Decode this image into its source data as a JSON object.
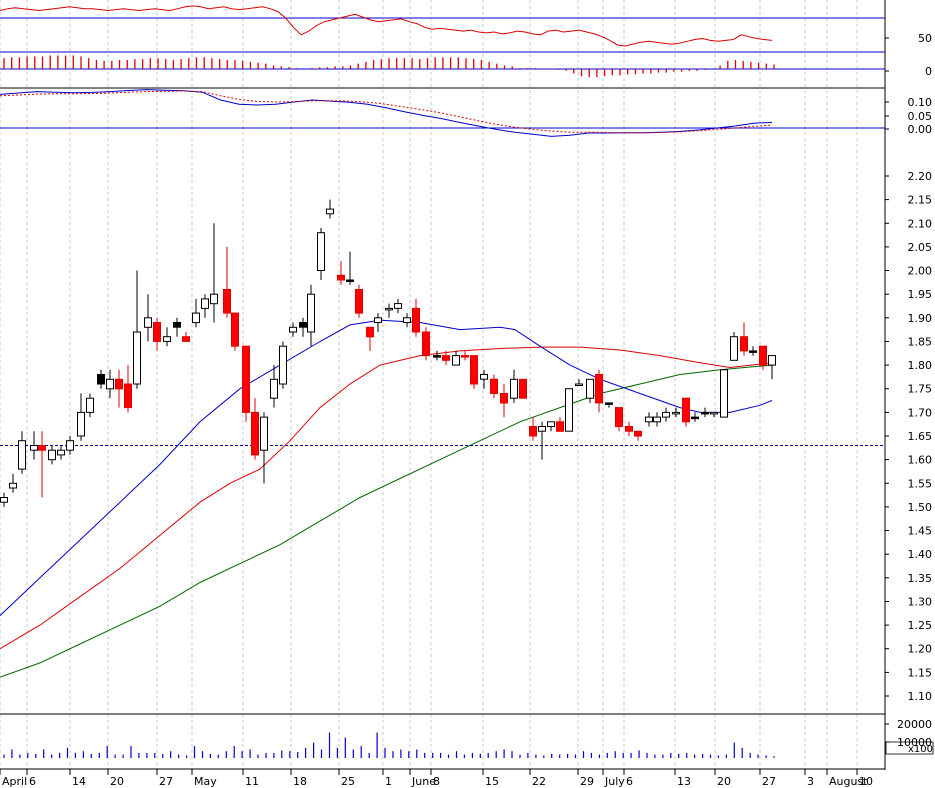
{
  "chart_data": {
    "type": "candlestick",
    "price_axis": {
      "ylim": [
        1.05,
        2.25
      ],
      "ticks": [
        "2.20",
        "2.15",
        "2.10",
        "2.05",
        "2.00",
        "1.95",
        "1.90",
        "1.85",
        "1.80",
        "1.75",
        "1.70",
        "1.65",
        "1.60",
        "1.55",
        "1.50",
        "1.45",
        "1.40",
        "1.35",
        "1.30",
        "1.25",
        "1.20",
        "1.15",
        "1.10"
      ],
      "reference_level": 1.63
    },
    "x_axis": {
      "labels": [
        "April",
        "6",
        "14",
        "20",
        "27",
        "May",
        "11",
        "18",
        "25",
        "1",
        "June",
        "8",
        "15",
        "22",
        "29",
        "July",
        "6",
        "13",
        "20",
        "27",
        "3",
        "August",
        "10"
      ],
      "month_labels": [
        "April",
        "May",
        "June",
        "July",
        "August"
      ]
    },
    "rsi_panel": {
      "ticks": [
        "50",
        "0"
      ],
      "levels": [
        85,
        20
      ],
      "series": [
        78,
        80,
        81,
        80,
        79,
        78,
        79,
        80,
        81,
        82,
        81,
        80,
        80,
        79,
        78,
        79,
        80,
        79,
        78,
        79,
        80,
        79,
        78,
        80,
        82,
        83,
        82,
        80,
        81,
        82,
        80,
        79,
        80,
        81,
        82,
        80,
        77,
        70,
        60,
        52,
        56,
        62,
        66,
        68,
        70,
        72,
        74,
        71,
        68,
        66,
        67,
        68,
        69,
        66,
        64,
        60,
        58,
        59,
        58,
        57,
        56,
        57,
        55,
        54,
        55,
        53,
        54,
        56,
        55,
        53,
        52,
        56,
        57,
        55,
        56,
        57,
        55,
        53,
        50,
        46,
        41,
        40,
        42,
        44,
        45,
        44,
        43,
        42,
        43,
        45,
        47,
        48,
        46,
        45,
        46,
        47,
        52,
        50,
        48,
        47,
        46
      ]
    },
    "histogram_panel": {
      "values": [
        12,
        13,
        13,
        14,
        14,
        14,
        15,
        15,
        15,
        15,
        14,
        12,
        10,
        9,
        9,
        10,
        10,
        11,
        11,
        12,
        12,
        11,
        10,
        11,
        12,
        13,
        13,
        12,
        11,
        10,
        10,
        9,
        8,
        7,
        6,
        4,
        3,
        2,
        1,
        0,
        1,
        2,
        2,
        3,
        3,
        4,
        6,
        8,
        10,
        11,
        12,
        12,
        12,
        12,
        11,
        12,
        13,
        13,
        13,
        13,
        12,
        11,
        10,
        8,
        6,
        4,
        3,
        1,
        1,
        1,
        0,
        0,
        -1,
        -2,
        -5,
        -8,
        -9,
        -9,
        -8,
        -7,
        -7,
        -6,
        -6,
        -5,
        -5,
        -4,
        -4,
        -3,
        -3,
        -2,
        -2,
        -1,
        0,
        4,
        9,
        10,
        9,
        8,
        7,
        6,
        5
      ]
    },
    "macd_panel": {
      "ticks": [
        "0.10",
        "0.05",
        "0.00"
      ],
      "macd": [
        0.12,
        0.125,
        0.13,
        0.128,
        0.126,
        0.127,
        0.13,
        0.134,
        0.137,
        0.135,
        0.133,
        0.128,
        0.1,
        0.085,
        0.082,
        0.085,
        0.093,
        0.1,
        0.096,
        0.092,
        0.085,
        0.072,
        0.058,
        0.045,
        0.034,
        0.02,
        0.007,
        -0.005,
        -0.015,
        -0.022,
        -0.03,
        -0.026,
        -0.018,
        -0.018,
        -0.017,
        -0.017,
        -0.015,
        -0.012,
        -0.007,
        0.0,
        0.007,
        0.017,
        0.02
      ],
      "signal": [
        0.115,
        0.118,
        0.121,
        0.122,
        0.122,
        0.123,
        0.125,
        0.128,
        0.13,
        0.131,
        0.132,
        0.13,
        0.115,
        0.102,
        0.095,
        0.093,
        0.094,
        0.097,
        0.097,
        0.096,
        0.092,
        0.085,
        0.075,
        0.065,
        0.054,
        0.04,
        0.026,
        0.013,
        0.003,
        -0.005,
        -0.011,
        -0.015,
        -0.015,
        -0.016,
        -0.017,
        -0.017,
        -0.016,
        -0.014,
        -0.01,
        -0.005,
        0.0,
        0.006,
        0.01
      ]
    },
    "volume_panel": {
      "ticks": [
        "20000",
        "10000"
      ],
      "multiplier": "x100",
      "values": [
        2000,
        5000,
        2000,
        3000,
        2500,
        5000,
        2000,
        3000,
        6000,
        3000,
        4000,
        2500,
        3000,
        7000,
        2000,
        2000,
        7000,
        3000,
        3000,
        3000,
        2500,
        4000,
        2000,
        1500,
        7000,
        4000,
        2500,
        2000,
        4000,
        7000,
        4000,
        5000,
        2000,
        3000,
        3000,
        4500,
        4000,
        3500,
        6000,
        9000,
        5000,
        15000,
        6000,
        12000,
        5000,
        7000,
        3000,
        15000,
        6000,
        4000,
        5000,
        4000,
        5000,
        3000,
        3000,
        3000,
        2000,
        4000,
        2000,
        3000,
        2500,
        3000,
        4000,
        5000,
        4000,
        2000,
        3000,
        2000,
        1500,
        2500,
        2000,
        2500,
        2000,
        4000,
        3000,
        2000,
        3000,
        4000,
        3000,
        3000,
        4500,
        3000,
        2000,
        2000,
        3000,
        2500,
        3000,
        2000,
        2500,
        2000,
        1500,
        2000,
        9000,
        6000,
        3000,
        2000,
        1500,
        1000
      ]
    }
  }
}
